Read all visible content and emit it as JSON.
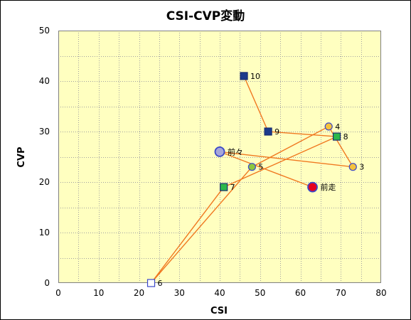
{
  "chart_data": {
    "type": "scatter",
    "title": "CSI-CVP変動",
    "xlabel": "CSI",
    "ylabel": "CVP",
    "xlim": [
      0,
      80
    ],
    "ylim": [
      0,
      50
    ],
    "x_ticks": [
      "0",
      "10",
      "20",
      "30",
      "40",
      "50",
      "60",
      "70",
      "80"
    ],
    "y_ticks": [
      "0",
      "10",
      "20",
      "30",
      "40",
      "50"
    ],
    "grid": true,
    "colors": {
      "plot_bg": "#FFFFC0",
      "grid": "#A0A0A0",
      "line": "#F07820",
      "blue": "#1B3A8C",
      "green": "#2DB84A",
      "gold": "#F4C23C",
      "lilac": "#A6A6D9",
      "olive": "#8CC63E",
      "red": "#E5001E",
      "white": "#FFFFFF",
      "outline": "#3B48C8"
    },
    "points": [
      {
        "label": "前走",
        "x": 63,
        "y": 19,
        "marker": "circle-large",
        "fill": "red"
      },
      {
        "label": "前々",
        "x": 40,
        "y": 26,
        "marker": "circle-large",
        "fill": "lilac"
      },
      {
        "label": "3",
        "x": 73,
        "y": 23,
        "marker": "circle",
        "fill": "gold"
      },
      {
        "label": "4",
        "x": 67,
        "y": 31,
        "marker": "circle",
        "fill": "gold"
      },
      {
        "label": "5",
        "x": 48,
        "y": 23,
        "marker": "circle",
        "fill": "olive"
      },
      {
        "label": "6",
        "x": 23,
        "y": 0,
        "marker": "square",
        "fill": "white"
      },
      {
        "label": "7",
        "x": 41,
        "y": 19,
        "marker": "square",
        "fill": "green"
      },
      {
        "label": "8",
        "x": 69,
        "y": 29,
        "marker": "square",
        "fill": "green"
      },
      {
        "label": "9",
        "x": 52,
        "y": 30,
        "marker": "square",
        "fill": "blue"
      },
      {
        "label": "10",
        "x": 46,
        "y": 41,
        "marker": "square",
        "fill": "blue"
      }
    ]
  }
}
